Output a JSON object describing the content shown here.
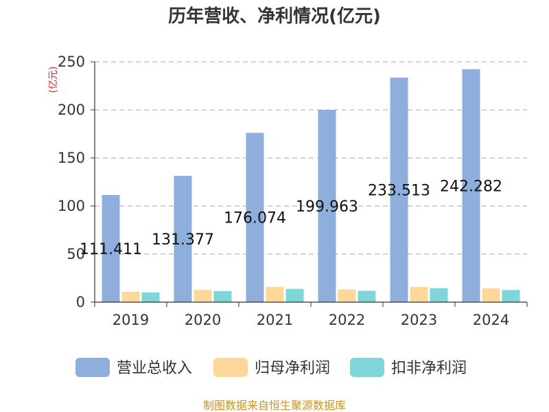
{
  "chart_data": {
    "type": "bar",
    "title": "历年营收、净利情况(亿元)",
    "unit_label": "(亿元)",
    "categories": [
      "2019",
      "2020",
      "2021",
      "2022",
      "2023",
      "2024"
    ],
    "yticks": [
      "0",
      "50",
      "100",
      "150",
      "200",
      "250"
    ],
    "ylim": [
      0,
      250
    ],
    "grid": true,
    "legend_position": "bottom",
    "series": [
      {
        "name": "营业总收入",
        "color": "#8eaedb",
        "values": [
          111.411,
          131.377,
          176.074,
          199.963,
          233.513,
          242.282
        ],
        "labels": [
          "111.411",
          "131.377",
          "176.074",
          "199.963",
          "233.513",
          "242.282"
        ]
      },
      {
        "name": "归母净利润",
        "color": "#fdd89a",
        "values": [
          10.8,
          12.8,
          15.9,
          13.3,
          15.8,
          14.3
        ]
      },
      {
        "name": "扣非净利润",
        "color": "#7fd6d8",
        "values": [
          10.0,
          11.5,
          13.8,
          11.8,
          14.5,
          12.6
        ]
      }
    ],
    "source": "制图数据来自恒生聚源数据库"
  }
}
